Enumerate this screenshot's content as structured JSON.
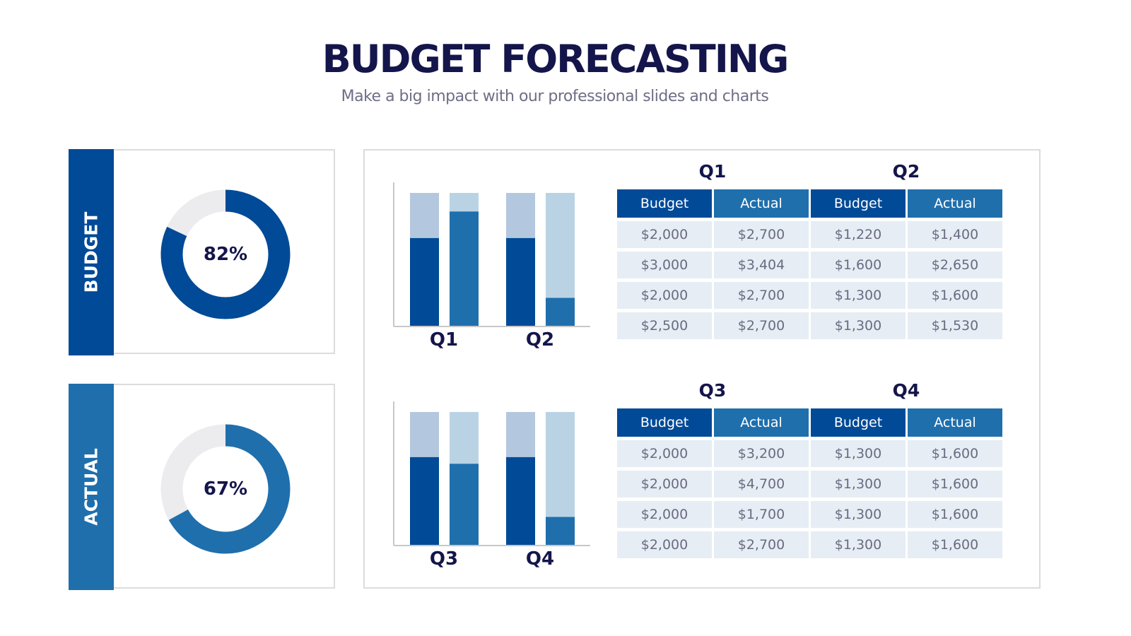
{
  "title": "BUDGET FORECASTING",
  "subtitle": "Make a big impact with our professional slides and charts",
  "colors": {
    "navy": "#14154a",
    "budget": "#004a97",
    "actual": "#1f6fad",
    "budget_bg": "#b3c7de",
    "actual_bg": "#bad3e4",
    "donut_track": "#ececef"
  },
  "donuts": [
    {
      "label": "BUDGET",
      "percent_text": "82%",
      "value": 82,
      "color": "#004a97"
    },
    {
      "label": "ACTUAL",
      "percent_text": "67%",
      "value": 67,
      "color": "#1f6fad"
    }
  ],
  "chart_data": [
    {
      "type": "bar",
      "stacked_progress": true,
      "categories": [
        "Q1",
        "Q2"
      ],
      "series": [
        {
          "values": [
            0.66,
            0.66
          ]
        },
        {
          "values": [
            0.86,
            0.21
          ]
        }
      ],
      "ylim": [
        0,
        1
      ]
    },
    {
      "type": "bar",
      "stacked_progress": true,
      "categories": [
        "Q3",
        "Q4"
      ],
      "series": [
        {
          "values": [
            0.66,
            0.66
          ]
        },
        {
          "values": [
            0.61,
            0.21
          ]
        }
      ],
      "ylim": [
        0,
        1
      ]
    }
  ],
  "tables": [
    {
      "left_q": "Q1",
      "right_q": "Q2",
      "headers": [
        "Budget",
        "Actual",
        "Budget",
        "Actual"
      ],
      "rows": [
        [
          "$2,000",
          "$2,700",
          "$1,220",
          "$1,400"
        ],
        [
          "$3,000",
          "$3,404",
          "$1,600",
          "$2,650"
        ],
        [
          "$2,000",
          "$2,700",
          "$1,300",
          "$1,600"
        ],
        [
          "$2,500",
          "$2,700",
          "$1,300",
          "$1,530"
        ]
      ]
    },
    {
      "left_q": "Q3",
      "right_q": "Q4",
      "headers": [
        "Budget",
        "Actual",
        "Budget",
        "Actual"
      ],
      "rows": [
        [
          "$2,000",
          "$3,200",
          "$1,300",
          "$1,600"
        ],
        [
          "$2,000",
          "$4,700",
          "$1,300",
          "$1,600"
        ],
        [
          "$2,000",
          "$1,700",
          "$1,300",
          "$1,600"
        ],
        [
          "$2,000",
          "$2,700",
          "$1,300",
          "$1,600"
        ]
      ]
    }
  ]
}
